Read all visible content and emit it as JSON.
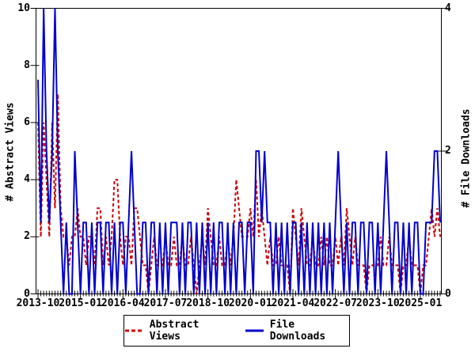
{
  "chart_data": {
    "type": "line",
    "title": "",
    "x_start_month": "2013-10",
    "x_monthly_count": 143,
    "x_tick_step_months": 15,
    "x_tick_labels": [
      "2013-10",
      "2015-01",
      "2016-04",
      "2017-07",
      "2018-10",
      "2020-01",
      "2021-04",
      "2022-07",
      "2023-10",
      "2025-01"
    ],
    "grid": "off",
    "legend_position": "bottom",
    "left_axis": {
      "label": "# Abstract Views",
      "min": 0,
      "max": 10,
      "ticks": [
        0,
        2,
        4,
        6,
        8,
        10
      ]
    },
    "right_axis": {
      "label": "# File Downloads",
      "min": 0,
      "max": 4,
      "ticks": [
        0,
        2,
        4
      ]
    },
    "series": [
      {
        "name": "Abstract Views",
        "axis": "left",
        "color": "#cc0000",
        "style": "dashed",
        "values": [
          6,
          2,
          6,
          4,
          2,
          6,
          3,
          7,
          3,
          2,
          2,
          1,
          2,
          2,
          3,
          2,
          2,
          1,
          2,
          2,
          1,
          3,
          3,
          1,
          2,
          1,
          2,
          4,
          4,
          2,
          1,
          2,
          2,
          1,
          3,
          3,
          2,
          1,
          1,
          0,
          1,
          2,
          1,
          1,
          1,
          2,
          1,
          1,
          2,
          1,
          1,
          2,
          1,
          1,
          2,
          1,
          0,
          1,
          2,
          1,
          3,
          2,
          1,
          1,
          2,
          1,
          1,
          2,
          1,
          2,
          4,
          3,
          2,
          2,
          2,
          3,
          2,
          4,
          2,
          3,
          2,
          1,
          2,
          1,
          1,
          2,
          1,
          1,
          1,
          0,
          3,
          2,
          1,
          3,
          2,
          1,
          1,
          2,
          1,
          1,
          2,
          1,
          2,
          1,
          1,
          2,
          1,
          2,
          1,
          3,
          2,
          1,
          2,
          1,
          1,
          1,
          0,
          1,
          1,
          1,
          1,
          2,
          1,
          1,
          2,
          1,
          1,
          1,
          0,
          1,
          1,
          2,
          1,
          1,
          1,
          0,
          1,
          1,
          2,
          3,
          2,
          3,
          2
        ]
      },
      {
        "name": "File Downloads",
        "axis": "right",
        "color": "#0000cc",
        "style": "solid",
        "values": [
          3,
          1,
          4,
          2,
          1,
          2,
          4,
          2,
          1,
          0,
          1,
          0,
          0,
          2,
          1,
          0,
          1,
          1,
          0,
          1,
          0,
          1,
          1,
          0,
          1,
          1,
          0,
          1,
          0,
          1,
          1,
          0,
          1,
          2,
          1,
          0,
          0,
          1,
          1,
          0,
          1,
          1,
          0,
          1,
          0,
          1,
          0,
          1,
          1,
          1,
          0,
          1,
          0,
          1,
          1,
          0,
          1,
          0,
          1,
          0,
          1,
          0,
          1,
          0,
          1,
          1,
          0,
          1,
          0,
          1,
          0,
          1,
          1,
          0,
          1,
          1,
          0,
          2,
          2,
          1,
          2,
          1,
          1,
          0,
          1,
          0,
          1,
          0,
          1,
          0,
          1,
          1,
          0,
          1,
          0,
          1,
          0,
          1,
          0,
          1,
          0,
          1,
          0,
          1,
          0,
          1,
          2,
          1,
          0,
          1,
          0,
          1,
          1,
          0,
          1,
          1,
          0,
          1,
          1,
          0,
          1,
          0,
          1,
          2,
          1,
          0,
          1,
          1,
          0,
          1,
          0,
          1,
          0,
          1,
          1,
          0,
          0,
          1,
          1,
          1,
          2,
          2,
          1
        ]
      }
    ]
  },
  "legend": {
    "items": [
      {
        "label": "Abstract Views"
      },
      {
        "label": "File Downloads"
      }
    ]
  },
  "colors": {
    "axis": "#000000",
    "background": "#ffffff"
  }
}
